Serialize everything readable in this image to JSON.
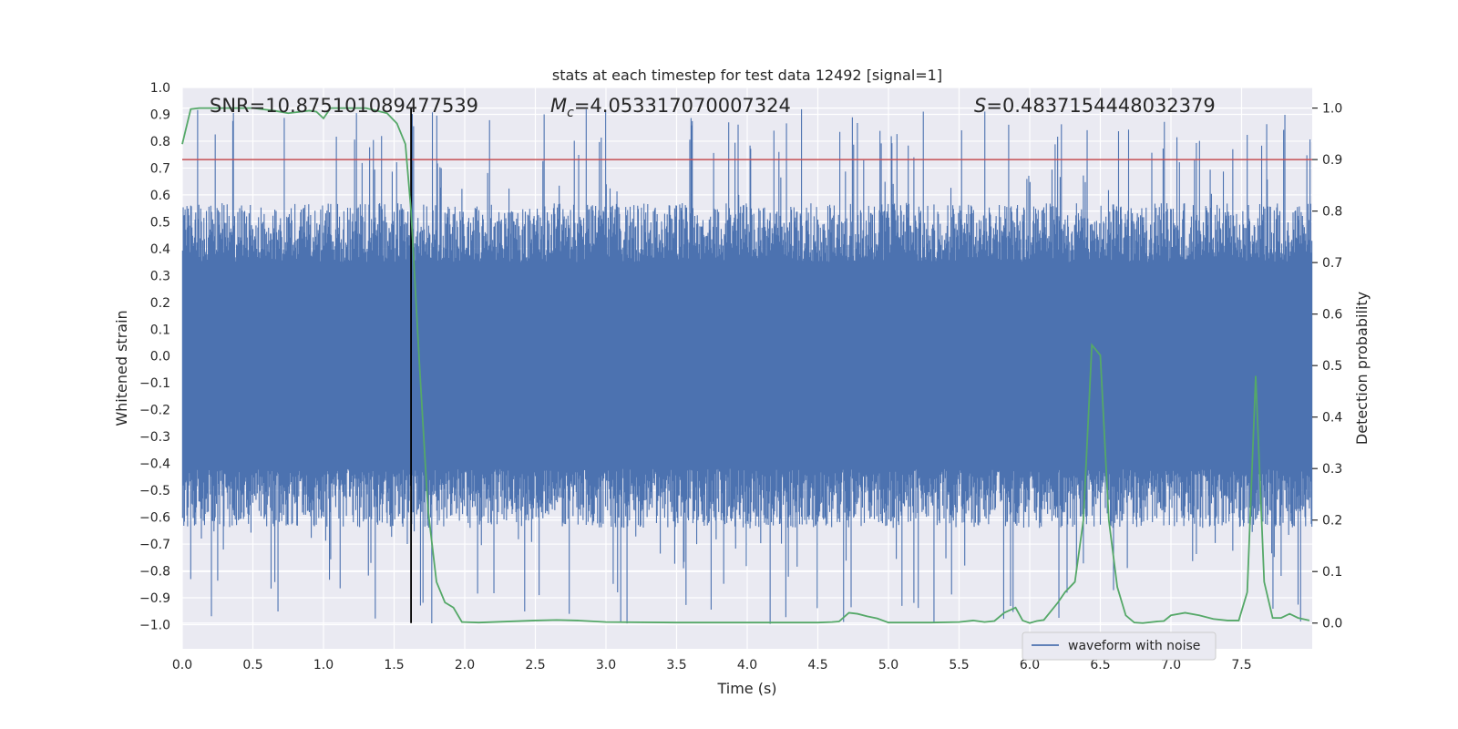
{
  "chart_data": {
    "type": "line",
    "title": "stats at each timestep for test data 12492 [signal=1]",
    "xlabel": "Time (s)",
    "ylabel_left": "Whitened strain",
    "ylabel_right": "Detection probability",
    "xlim": [
      0.0,
      8.0
    ],
    "ylim_left": [
      -1.09,
      1.0
    ],
    "ylim_right": [
      -0.05,
      1.04
    ],
    "xticks": [
      0.0,
      0.5,
      1.0,
      1.5,
      2.0,
      2.5,
      3.0,
      3.5,
      4.0,
      4.5,
      5.0,
      5.5,
      6.0,
      6.5,
      7.0,
      7.5
    ],
    "xtick_labels": [
      "0.0",
      "0.5",
      "1.0",
      "1.5",
      "2.0",
      "2.5",
      "3.0",
      "3.5",
      "4.0",
      "4.5",
      "5.0",
      "5.5",
      "6.0",
      "6.5",
      "7.0",
      "7.5"
    ],
    "yticks_left": [
      1.0,
      0.9,
      0.8,
      0.7,
      0.6,
      0.5,
      0.4,
      0.3,
      0.2,
      0.1,
      0.0,
      -0.1,
      -0.2,
      -0.3,
      -0.4,
      -0.5,
      -0.6,
      -0.7,
      -0.8,
      -0.9,
      -1.0
    ],
    "ytick_labels_left": [
      "1.0",
      "0.9",
      "0.8",
      "0.7",
      "0.6",
      "0.5",
      "0.4",
      "0.3",
      "0.2",
      "0.1",
      "0.0",
      "−0.1",
      "−0.2",
      "−0.3",
      "−0.4",
      "−0.5",
      "−0.6",
      "−0.7",
      "−0.8",
      "−0.9",
      "−1.0"
    ],
    "yticks_right": [
      1.0,
      0.9,
      0.8,
      0.7,
      0.6,
      0.5,
      0.4,
      0.3,
      0.2,
      0.1,
      0.0
    ],
    "ytick_labels_right": [
      "1.0",
      "0.9",
      "0.8",
      "0.7",
      "0.6",
      "0.5",
      "0.4",
      "0.3",
      "0.2",
      "0.1",
      "0.0"
    ],
    "grid": true,
    "annotations": {
      "snr": "SNR=10.875101089477539",
      "mc_symbol": "M",
      "mc_sub": "c",
      "mc_value": "=4.053317070007324",
      "s_symbol": "S",
      "s_value": "=0.4837154448032379"
    },
    "legend": {
      "label": "waveform with noise",
      "placement": "lower-right"
    },
    "threshold_probability": 0.9,
    "merger_time": 1.62,
    "waveform": {
      "name": "waveform with noise",
      "color": "#4c72b0",
      "n_samples": 1800,
      "typical_range": [
        -0.42,
        0.35
      ],
      "extreme_range": [
        -1.0,
        0.92
      ]
    },
    "probability": {
      "name": "detection probability",
      "color": "#55a868",
      "x": [
        0.0,
        0.06,
        0.12,
        0.25,
        0.5,
        0.65,
        0.75,
        0.9,
        0.95,
        1.0,
        1.05,
        1.15,
        1.3,
        1.45,
        1.52,
        1.58,
        1.62,
        1.68,
        1.74,
        1.8,
        1.86,
        1.92,
        1.98,
        2.1,
        2.5,
        2.65,
        2.8,
        3.0,
        3.5,
        4.0,
        4.5,
        4.6,
        4.65,
        4.72,
        4.78,
        4.85,
        4.92,
        5.0,
        5.1,
        5.3,
        5.5,
        5.6,
        5.68,
        5.75,
        5.82,
        5.9,
        5.95,
        6.0,
        6.05,
        6.1,
        6.2,
        6.25,
        6.32,
        6.38,
        6.44,
        6.5,
        6.56,
        6.62,
        6.68,
        6.74,
        6.8,
        6.9,
        6.95,
        7.0,
        7.1,
        7.2,
        7.3,
        7.4,
        7.48,
        7.54,
        7.6,
        7.66,
        7.72,
        7.78,
        7.84,
        7.9,
        7.98
      ],
      "y": [
        0.93,
        0.998,
        1.0,
        1.0,
        1.0,
        0.995,
        0.99,
        0.995,
        0.993,
        0.98,
        1.0,
        1.0,
        1.0,
        0.99,
        0.97,
        0.93,
        0.8,
        0.5,
        0.22,
        0.08,
        0.04,
        0.03,
        0.002,
        0.001,
        0.005,
        0.006,
        0.005,
        0.002,
        0.001,
        0.001,
        0.001,
        0.002,
        0.003,
        0.02,
        0.018,
        0.013,
        0.009,
        0.001,
        0.001,
        0.001,
        0.002,
        0.005,
        0.002,
        0.004,
        0.02,
        0.03,
        0.005,
        0.0,
        0.004,
        0.006,
        0.04,
        0.06,
        0.08,
        0.2,
        0.54,
        0.52,
        0.2,
        0.07,
        0.015,
        0.001,
        0.0,
        0.003,
        0.004,
        0.015,
        0.02,
        0.015,
        0.008,
        0.005,
        0.005,
        0.06,
        0.48,
        0.08,
        0.01,
        0.01,
        0.018,
        0.01,
        0.005
      ]
    }
  }
}
